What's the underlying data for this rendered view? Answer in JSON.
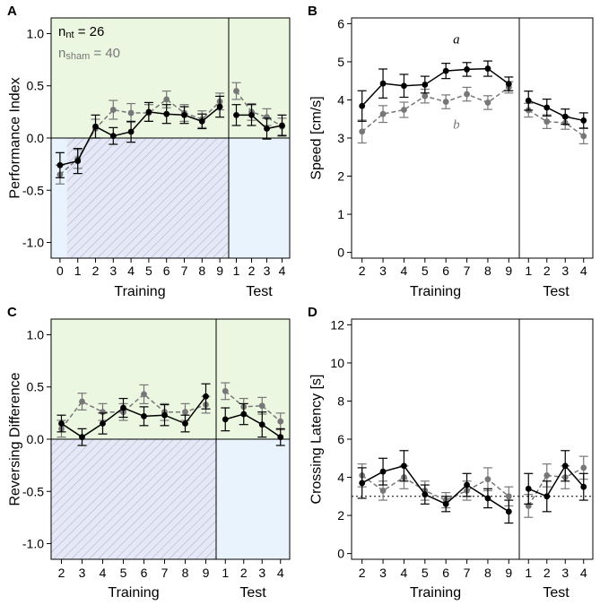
{
  "colors": {
    "series_nt": "#000000",
    "series_sham": "#777777",
    "green_bg": "#ecf7e1",
    "blue_bg": "#e8f3fd",
    "hatch": "#aab4d8"
  },
  "legend": {
    "nt_prefix": "n",
    "nt_sub": "nt",
    "nt_value": " = 26",
    "sham_prefix": "n",
    "sham_sub": "sham",
    "sham_value": " = 40"
  },
  "chart_data": [
    {
      "panel": "A",
      "type": "line",
      "ylabel": "Performance Index",
      "ylim": [
        -1.15,
        1.15
      ],
      "yticks": [
        "1.0",
        "0.5",
        "0.0",
        "-0.5",
        "-1.0"
      ],
      "ytick_values": [
        1.0,
        0.5,
        0.0,
        -0.5,
        -1.0
      ],
      "phases": [
        {
          "name": "Training",
          "x": [
            "0",
            "1",
            "2",
            "3",
            "4",
            "5",
            "6",
            "7",
            "8",
            "9"
          ]
        },
        {
          "name": "Test",
          "x": [
            "1",
            "2",
            "3",
            "4"
          ]
        }
      ],
      "series": [
        {
          "name": "nt",
          "style": "solid",
          "values": [
            [
              -0.26,
              -0.22,
              0.11,
              0.02,
              0.06,
              0.25,
              0.23,
              0.22,
              0.16,
              0.3
            ],
            [
              0.22,
              0.22,
              0.09,
              0.12
            ]
          ],
          "errors": [
            [
              0.12,
              0.12,
              0.11,
              0.08,
              0.1,
              0.09,
              0.09,
              0.08,
              0.07,
              0.1
            ],
            [
              0.1,
              0.1,
              0.1,
              0.1
            ]
          ]
        },
        {
          "name": "sham",
          "style": "dashed",
          "values": [
            [
              -0.35,
              -0.2,
              0.09,
              0.27,
              0.24,
              0.24,
              0.37,
              0.24,
              0.18,
              0.35
            ],
            [
              0.45,
              0.25,
              0.2,
              0.11
            ]
          ],
          "errors": [
            [
              0.09,
              0.09,
              0.09,
              0.09,
              0.09,
              0.08,
              0.08,
              0.08,
              0.08,
              0.08
            ],
            [
              0.08,
              0.08,
              0.08,
              0.08
            ]
          ]
        }
      ]
    },
    {
      "panel": "B",
      "type": "line",
      "ylabel": "Speed [cm/s]",
      "ylim": [
        -0.15,
        6.15
      ],
      "yticks": [
        "6",
        "5",
        "4",
        "3",
        "2",
        "1",
        "0"
      ],
      "ytick_values": [
        6,
        5,
        4,
        3,
        2,
        1,
        0
      ],
      "phases": [
        {
          "name": "Training",
          "x": [
            "2",
            "3",
            "4",
            "5",
            "6",
            "7",
            "8",
            "9"
          ]
        },
        {
          "name": "Test",
          "x": [
            "1",
            "2",
            "3",
            "4"
          ]
        }
      ],
      "annotations": [
        {
          "text": "a",
          "series": "nt",
          "at": [
            0,
            4
          ],
          "dy_value": 0.72
        },
        {
          "text": "b",
          "series": "sham",
          "at": [
            0,
            4
          ],
          "dy_value": -0.7
        }
      ],
      "series": [
        {
          "name": "nt",
          "style": "solid",
          "values": [
            [
              3.84,
              4.43,
              4.37,
              4.4,
              4.76,
              4.8,
              4.82,
              4.42
            ],
            [
              3.98,
              3.8,
              3.56,
              3.46
            ]
          ],
          "errors": [
            [
              0.4,
              0.38,
              0.3,
              0.22,
              0.2,
              0.18,
              0.2,
              0.18
            ],
            [
              0.25,
              0.22,
              0.2,
              0.2
            ]
          ]
        },
        {
          "name": "sham",
          "style": "dashed",
          "values": [
            [
              3.17,
              3.63,
              3.74,
              4.1,
              3.95,
              4.15,
              3.93,
              4.33
            ],
            [
              3.73,
              3.43,
              3.4,
              3.05
            ]
          ],
          "errors": [
            [
              0.3,
              0.22,
              0.2,
              0.18,
              0.18,
              0.18,
              0.18,
              0.15
            ],
            [
              0.18,
              0.18,
              0.17,
              0.2
            ]
          ]
        }
      ]
    },
    {
      "panel": "C",
      "type": "line",
      "ylabel": "Reversing Difference",
      "ylim": [
        -1.15,
        1.15
      ],
      "yticks": [
        "1.0",
        "0.5",
        "0.0",
        "-0.5",
        "-1.0"
      ],
      "ytick_values": [
        1.0,
        0.5,
        0.0,
        -0.5,
        -1.0
      ],
      "phases": [
        {
          "name": "Training",
          "x": [
            "2",
            "3",
            "4",
            "5",
            "6",
            "7",
            "8",
            "9"
          ]
        },
        {
          "name": "Test",
          "x": [
            "1",
            "2",
            "3",
            "4"
          ]
        }
      ],
      "series": [
        {
          "name": "nt",
          "style": "solid",
          "values": [
            [
              0.15,
              0.02,
              0.15,
              0.3,
              0.22,
              0.23,
              0.15,
              0.41
            ],
            [
              0.19,
              0.24,
              0.14,
              0.02
            ]
          ],
          "errors": [
            [
              0.08,
              0.08,
              0.1,
              0.09,
              0.09,
              0.1,
              0.08,
              0.12
            ],
            [
              0.11,
              0.1,
              0.12,
              0.08
            ]
          ]
        },
        {
          "name": "sham",
          "style": "dashed",
          "values": [
            [
              0.1,
              0.36,
              0.26,
              0.26,
              0.43,
              0.26,
              0.26,
              0.33
            ],
            [
              0.46,
              0.31,
              0.32,
              0.17
            ]
          ],
          "errors": [
            [
              0.08,
              0.08,
              0.08,
              0.08,
              0.09,
              0.08,
              0.08,
              0.08
            ],
            [
              0.08,
              0.08,
              0.08,
              0.08
            ]
          ]
        }
      ]
    },
    {
      "panel": "D",
      "type": "line",
      "ylabel": "Crossing Latency [s]",
      "ylim": [
        -0.3,
        12.3
      ],
      "yticks": [
        "12",
        "10",
        "8",
        "6",
        "4",
        "2",
        "0"
      ],
      "ytick_values": [
        12,
        10,
        8,
        6,
        4,
        2,
        0
      ],
      "reference_line": 3.0,
      "phases": [
        {
          "name": "Training",
          "x": [
            "2",
            "3",
            "4",
            "5",
            "6",
            "7",
            "8",
            "9"
          ]
        },
        {
          "name": "Test",
          "x": [
            "1",
            "2",
            "3",
            "4"
          ]
        }
      ],
      "series": [
        {
          "name": "nt",
          "style": "solid",
          "values": [
            [
              3.7,
              4.3,
              4.6,
              3.1,
              2.6,
              3.6,
              2.9,
              2.2
            ],
            [
              3.4,
              3.0,
              4.6,
              3.5
            ]
          ],
          "errors": [
            [
              0.8,
              0.7,
              0.8,
              0.5,
              0.4,
              0.6,
              0.5,
              0.6
            ],
            [
              0.8,
              0.8,
              0.8,
              0.7
            ]
          ]
        },
        {
          "name": "sham",
          "style": "dashed",
          "values": [
            [
              4.1,
              3.3,
              4.0,
              3.3,
              2.8,
              3.3,
              3.9,
              3.0
            ],
            [
              2.5,
              4.1,
              4.0,
              4.5
            ]
          ],
          "errors": [
            [
              0.6,
              0.5,
              0.6,
              0.5,
              0.4,
              0.5,
              0.6,
              0.5
            ],
            [
              0.6,
              0.6,
              0.6,
              0.6
            ]
          ]
        }
      ]
    }
  ]
}
